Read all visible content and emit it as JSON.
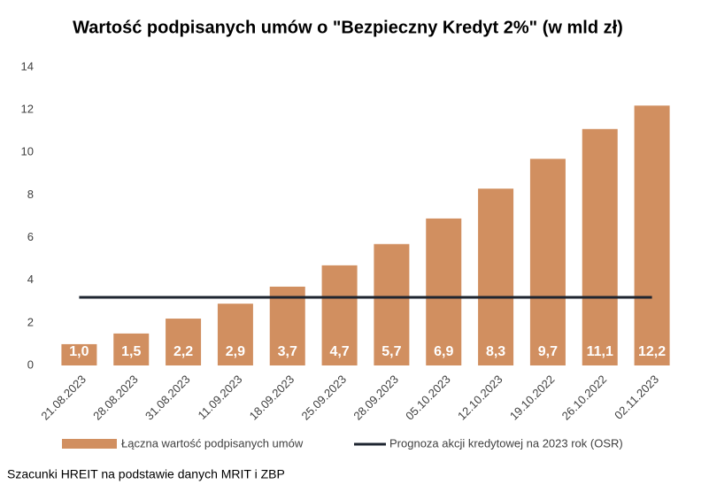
{
  "chart_data": {
    "type": "bar",
    "title": "Wartość podpisanych umów o \"Bezpieczny Kredyt 2%\" (w mld zł)",
    "categories": [
      "21.08.2023",
      "28.08.2023",
      "31.08.2023",
      "11.09.2023",
      "18.09.2023",
      "25.09.2023",
      "28.09.2023",
      "05.10.2023",
      "12.10.2023",
      "19.10.2022",
      "26.10.2022",
      "02.11.2023"
    ],
    "series": [
      {
        "name": "Łączna wartość podpisanych umów",
        "type": "bar",
        "color": "#d18f60",
        "values": [
          1.0,
          1.5,
          2.2,
          2.9,
          3.7,
          4.7,
          5.7,
          6.9,
          8.3,
          9.7,
          11.1,
          12.2
        ],
        "value_labels": [
          "1,0",
          "1,5",
          "2,2",
          "2,9",
          "3,7",
          "4,7",
          "5,7",
          "6,9",
          "8,3",
          "9,7",
          "11,1",
          "12,2"
        ]
      },
      {
        "name": "Prognoza akcji kredytowej na 2023 rok (OSR)",
        "type": "line",
        "color": "#1e2530",
        "values": [
          3.2,
          3.2,
          3.2,
          3.2,
          3.2,
          3.2,
          3.2,
          3.2,
          3.2,
          3.2,
          3.2,
          3.2
        ]
      }
    ],
    "ylim": [
      0,
      14
    ],
    "yticks": [
      0,
      2,
      4,
      6,
      8,
      10,
      12,
      14
    ],
    "grid": false,
    "source": "Szacunki HREIT na podstawie danych MRIT i ZBP"
  }
}
